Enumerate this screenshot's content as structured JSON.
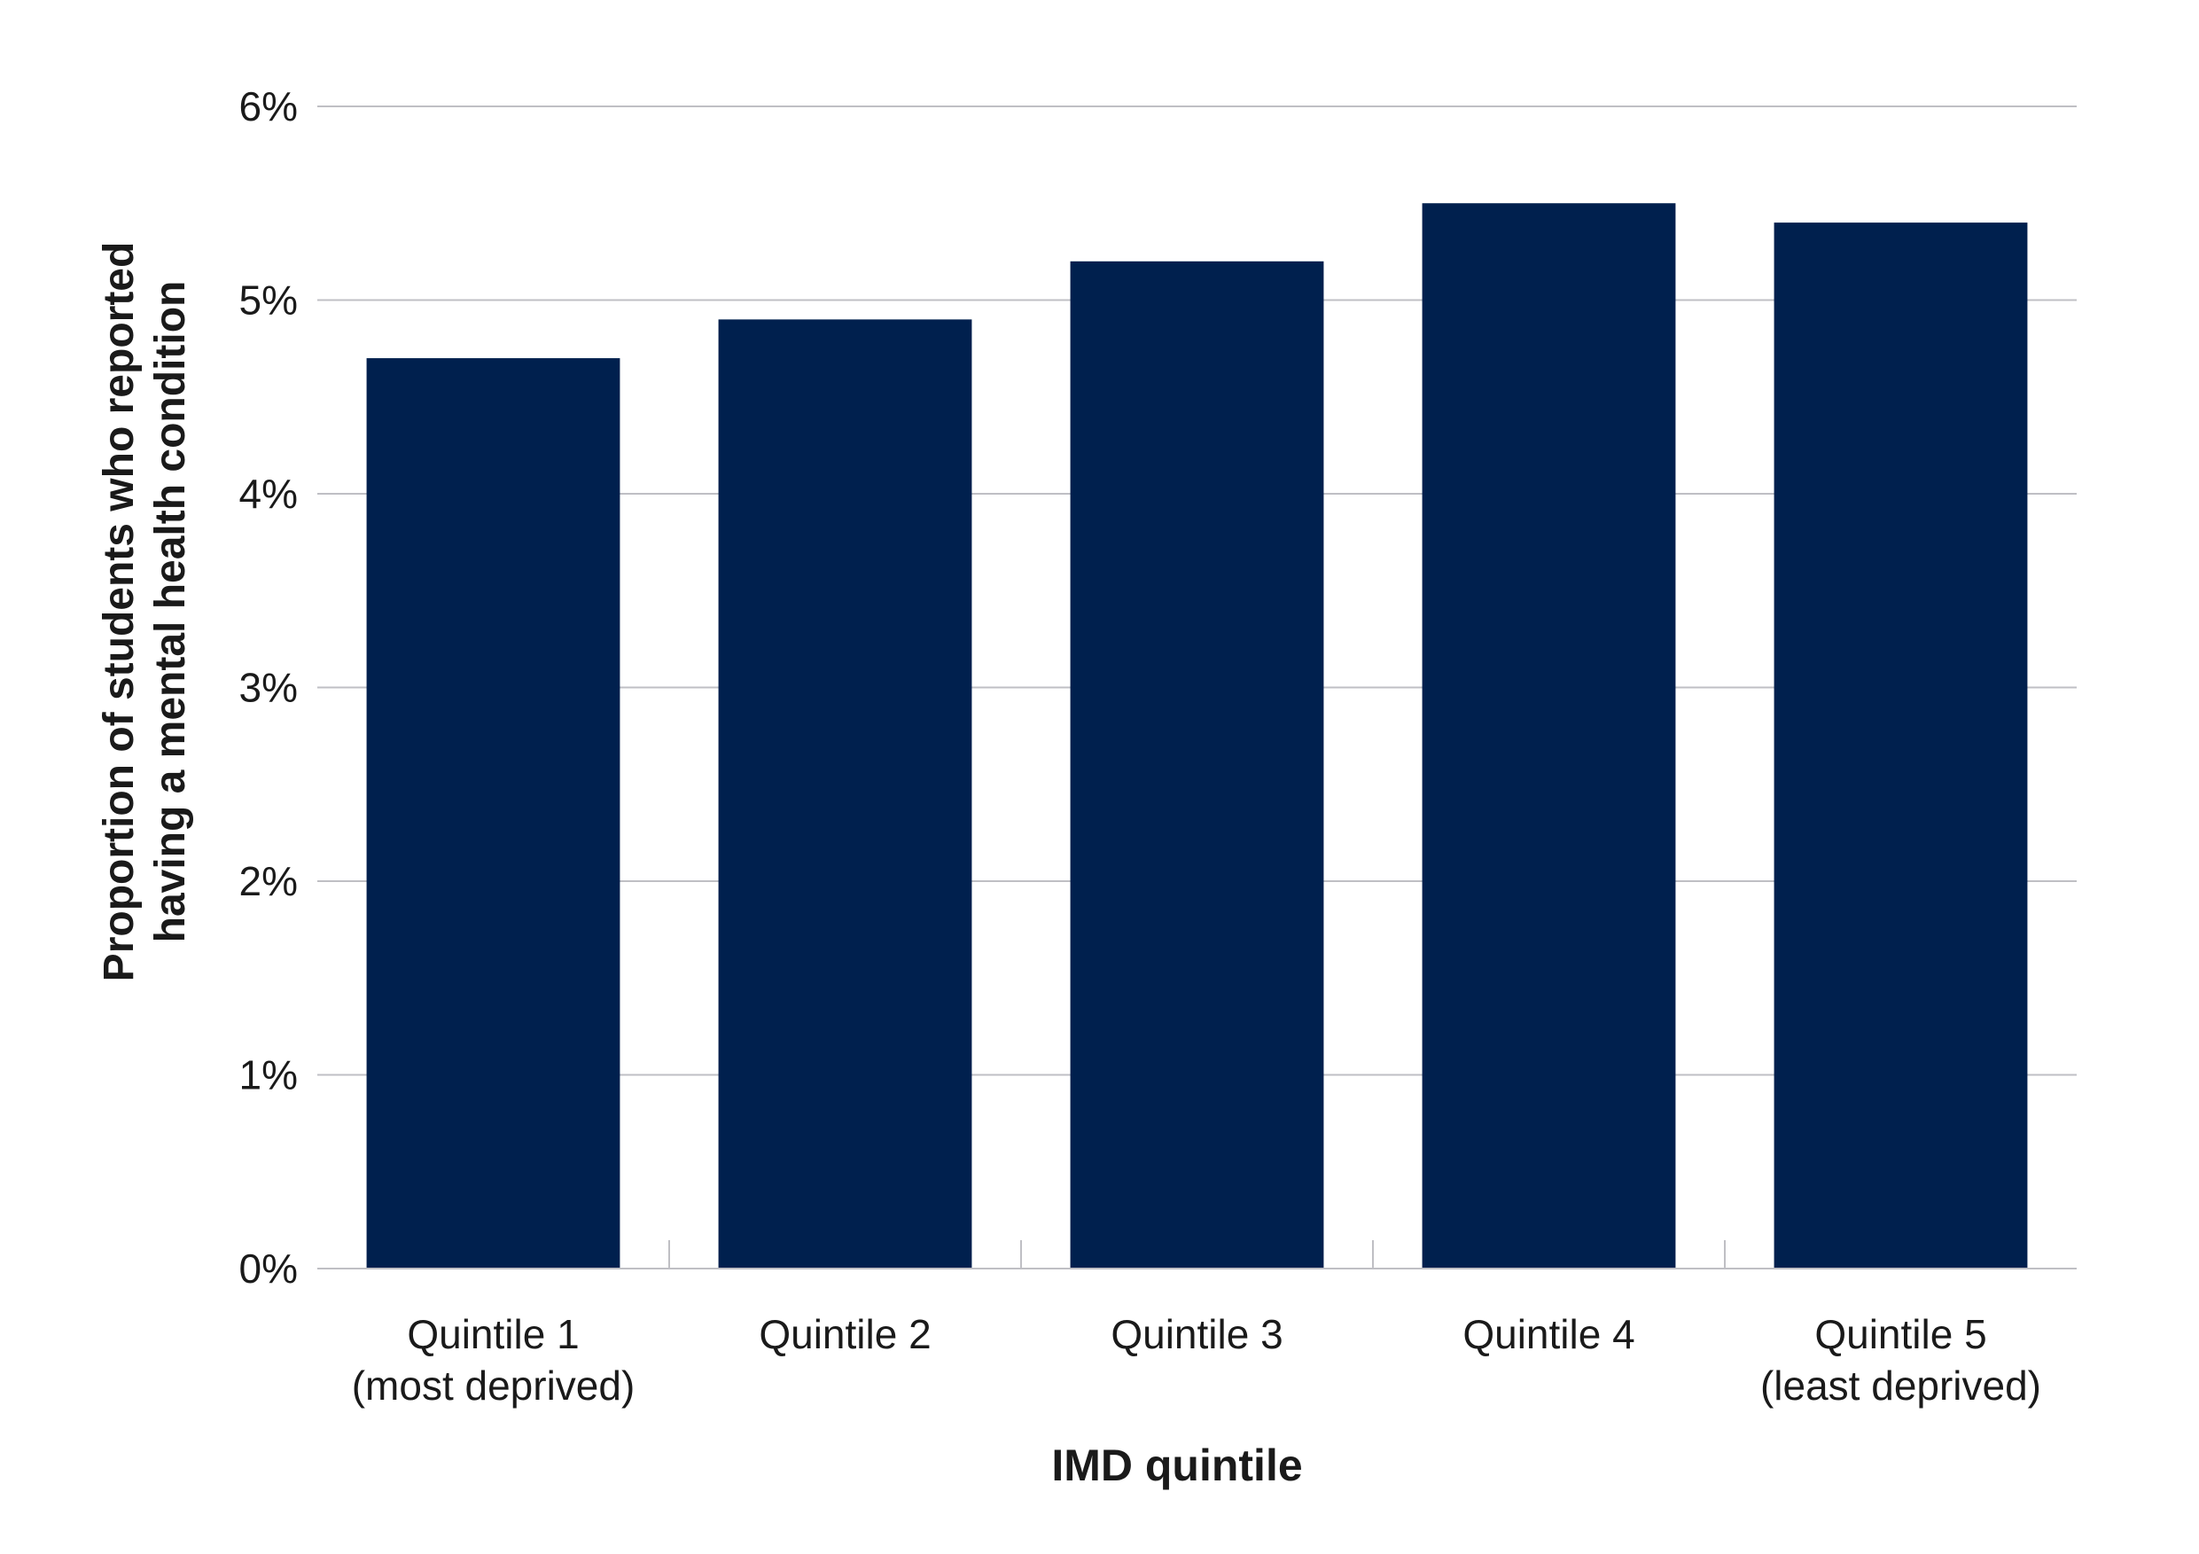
{
  "chart_data": {
    "type": "bar",
    "title": "",
    "xlabel": "IMD quintile",
    "ylabel_lines": [
      "Proportion of students who reported",
      "having a mental health condition"
    ],
    "categories": [
      [
        "Quintile 1",
        "(most deprived)"
      ],
      [
        "Quintile 2"
      ],
      [
        "Quintile 3"
      ],
      [
        "Quintile 4"
      ],
      [
        "Quintile 5",
        "(least deprived)"
      ]
    ],
    "values": [
      4.7,
      4.9,
      5.2,
      5.5,
      5.4
    ],
    "value_format": "percent",
    "ylim": [
      0,
      6
    ],
    "yticks": [
      0,
      1,
      2,
      3,
      4,
      5,
      6
    ],
    "ytick_labels": [
      "0%",
      "1%",
      "2%",
      "3%",
      "4%",
      "5%",
      "6%"
    ],
    "grid": true,
    "legend": "none",
    "colors": {
      "bar": "#00204E",
      "grid": "#BFBFC4",
      "axis": "#BFBFC4",
      "text": "#1a1a1a"
    }
  }
}
